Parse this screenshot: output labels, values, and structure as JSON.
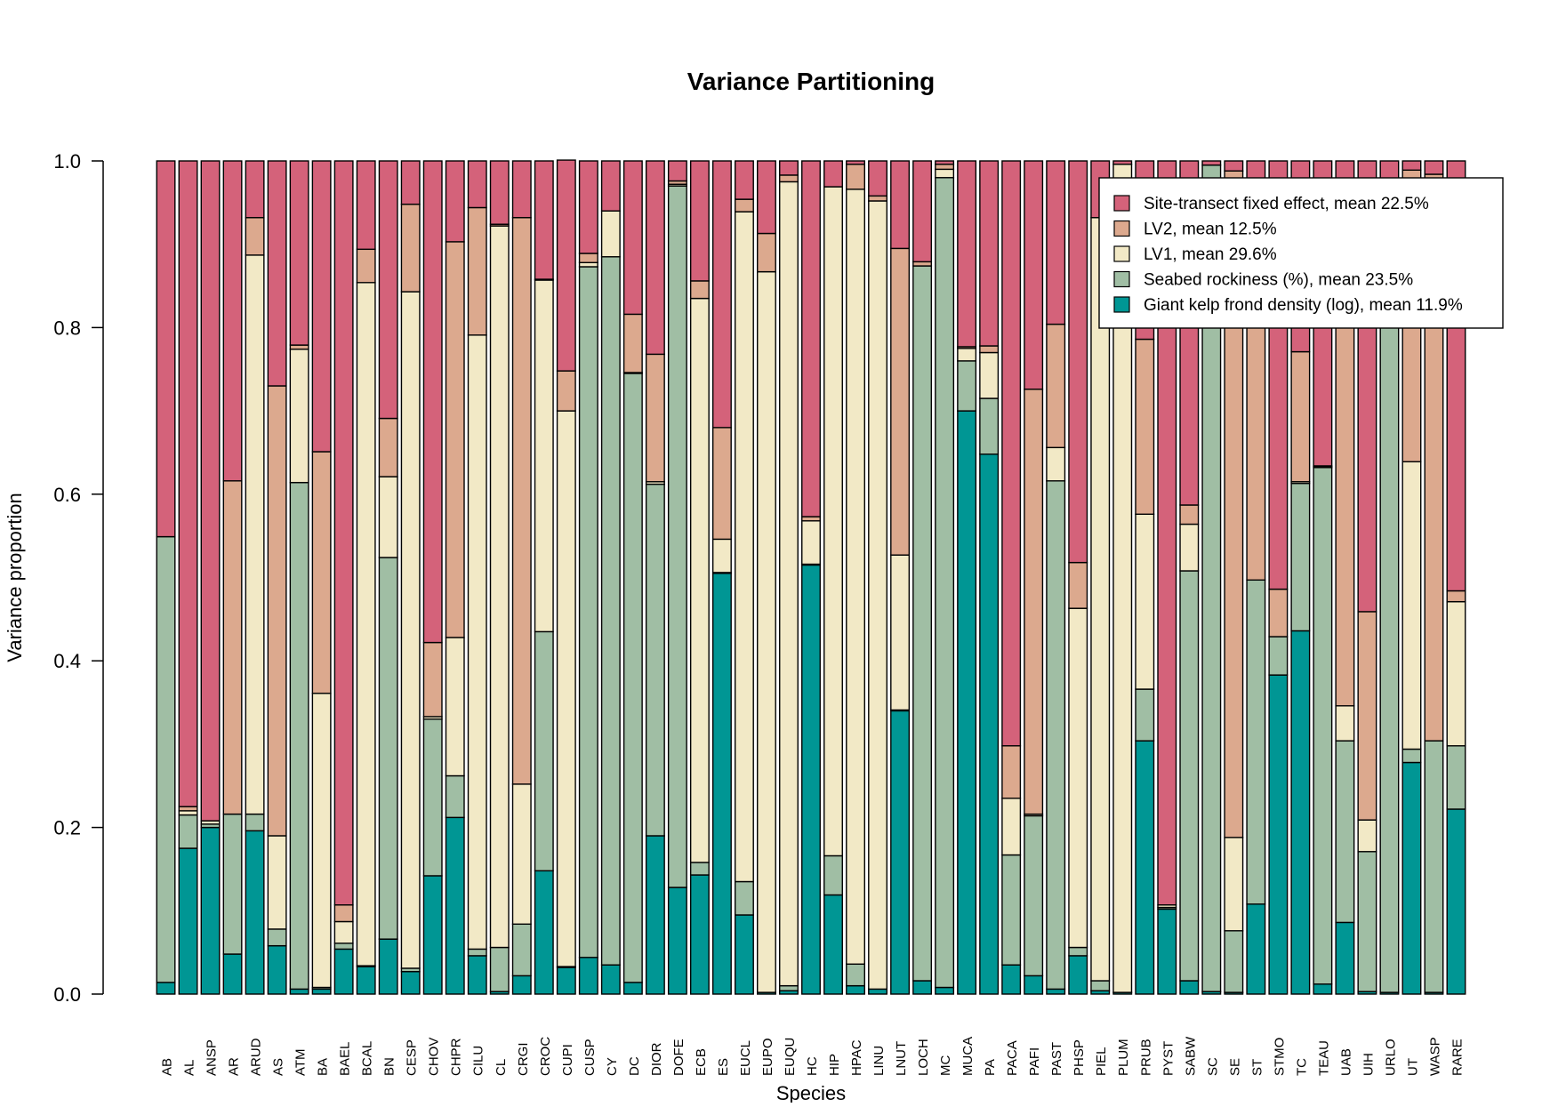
{
  "chart_data": {
    "type": "bar",
    "stacked": true,
    "title": "Variance Partitioning",
    "xlabel": "Species",
    "ylabel": "Variance proportion",
    "ylim": [
      0,
      1
    ],
    "yticks": [
      "0.0",
      "0.2",
      "0.4",
      "0.6",
      "0.8",
      "1.0"
    ],
    "grid": false,
    "legend_position": "top-right",
    "categories": [
      "AB",
      "AL",
      "ANSP",
      "AR",
      "ARUD",
      "AS",
      "ATM",
      "BA",
      "BAEL",
      "BCAL",
      "BN",
      "CESP",
      "CHOV",
      "CHPR",
      "CILU",
      "CL",
      "CRGI",
      "CROC",
      "CUPI",
      "CUSP",
      "CY",
      "DC",
      "DIOR",
      "DOFE",
      "ECB",
      "ES",
      "EUCL",
      "EUPO",
      "EUQU",
      "HC",
      "HIP",
      "HPAC",
      "LINU",
      "LNUT",
      "LOCH",
      "MC",
      "MUCA",
      "PA",
      "PACA",
      "PAFI",
      "PAST",
      "PHSP",
      "PIEL",
      "PLUM",
      "PRUB",
      "PYST",
      "SABW",
      "SC",
      "SE",
      "ST",
      "STMO",
      "TC",
      "TEAU",
      "UAB",
      "UIH",
      "URLO",
      "UT",
      "WASP",
      "RARE"
    ],
    "series": [
      {
        "name": "Giant kelp frond density (log), mean 11.9%",
        "color": "#009694",
        "values": [
          0.014,
          0.175,
          0.2,
          0.048,
          0.196,
          0.058,
          0.006,
          0.006,
          0.054,
          0.033,
          0.066,
          0.027,
          0.142,
          0.212,
          0.046,
          0.003,
          0.022,
          0.148,
          0.032,
          0.044,
          0.035,
          0.014,
          0.19,
          0.128,
          0.143,
          0.505,
          0.095,
          0.002,
          0.004,
          0.515,
          0.119,
          0.01,
          0.006,
          0.34,
          0.016,
          0.008,
          0.7,
          0.648,
          0.035,
          0.022,
          0.006,
          0.046,
          0.004,
          0.002,
          0.304,
          0.102,
          0.016,
          0.003,
          0.002,
          0.108,
          0.383,
          0.436,
          0.012,
          0.086,
          0.003,
          0.002,
          0.278,
          0.002,
          0.222
        ]
      },
      {
        "name": "Seabed rockiness (%), mean 23.5%",
        "color": "#A0BEA4",
        "values": [
          0.535,
          0.04,
          0.004,
          0.168,
          0.02,
          0.02,
          0.608,
          0.002,
          0.007,
          0.001,
          0.458,
          0.004,
          0.188,
          0.05,
          0.008,
          0.053,
          0.062,
          0.287,
          0.001,
          0.829,
          0.85,
          0.731,
          0.422,
          0.842,
          0.015,
          0.001,
          0.04,
          0.0,
          0.006,
          0.001,
          0.047,
          0.026,
          0.0,
          0.001,
          0.858,
          0.972,
          0.06,
          0.067,
          0.132,
          0.192,
          0.61,
          0.01,
          0.012,
          0.0,
          0.062,
          0.002,
          0.492,
          0.992,
          0.074,
          0.389,
          0.046,
          0.177,
          0.62,
          0.218,
          0.168,
          0.89,
          0.016,
          0.302,
          0.076
        ]
      },
      {
        "name": "LV1, mean 29.6%",
        "color": "#F2E9C6",
        "values": [
          0.0,
          0.005,
          0.004,
          0.0,
          0.671,
          0.112,
          0.16,
          0.353,
          0.026,
          0.82,
          0.097,
          0.812,
          0.003,
          0.166,
          0.737,
          0.866,
          0.168,
          0.422,
          0.667,
          0.005,
          0.055,
          0.001,
          0.003,
          0.002,
          0.677,
          0.04,
          0.804,
          0.865,
          0.965,
          0.052,
          0.803,
          0.93,
          0.946,
          0.186,
          0.0,
          0.01,
          0.015,
          0.055,
          0.068,
          0.002,
          0.04,
          0.407,
          0.916,
          0.994,
          0.21,
          0.003,
          0.056,
          0.0,
          0.112,
          0.0,
          0.0,
          0.002,
          0.001,
          0.042,
          0.038,
          0.0,
          0.345,
          0.0,
          0.173
        ]
      },
      {
        "name": "LV2, mean 12.5%",
        "color": "#DCA98E",
        "values": [
          0.0,
          0.005,
          0.0,
          0.4,
          0.045,
          0.54,
          0.005,
          0.29,
          0.02,
          0.04,
          0.07,
          0.105,
          0.089,
          0.475,
          0.153,
          0.002,
          0.68,
          0.001,
          0.048,
          0.011,
          0.0,
          0.07,
          0.153,
          0.004,
          0.021,
          0.134,
          0.015,
          0.046,
          0.008,
          0.005,
          0.0,
          0.03,
          0.006,
          0.368,
          0.005,
          0.006,
          0.002,
          0.008,
          0.063,
          0.51,
          0.148,
          0.055,
          0.0,
          0.0,
          0.21,
          0.0,
          0.023,
          0.0,
          0.8,
          0.4,
          0.057,
          0.156,
          0.001,
          0.46,
          0.25,
          0.0,
          0.35,
          0.68,
          0.013
        ]
      },
      {
        "name": "Site-transect fixed effect, mean 22.5%",
        "color": "#D4627A",
        "values": [
          0.451,
          0.775,
          0.792,
          0.384,
          0.068,
          0.27,
          0.221,
          0.349,
          0.893,
          0.106,
          0.309,
          0.052,
          0.578,
          0.097,
          0.056,
          0.076,
          0.068,
          0.142,
          0.253,
          0.111,
          0.06,
          0.184,
          0.232,
          0.024,
          0.144,
          0.32,
          0.046,
          0.087,
          0.017,
          0.427,
          0.031,
          0.004,
          0.042,
          0.105,
          0.121,
          0.004,
          0.223,
          0.222,
          0.702,
          0.274,
          0.196,
          0.482,
          0.068,
          0.004,
          0.214,
          0.893,
          0.413,
          0.005,
          0.012,
          0.103,
          0.514,
          0.229,
          0.366,
          0.194,
          0.541,
          0.108,
          0.011,
          0.016,
          0.516
        ]
      }
    ]
  },
  "legend_order": [
    4,
    3,
    2,
    1,
    0
  ]
}
